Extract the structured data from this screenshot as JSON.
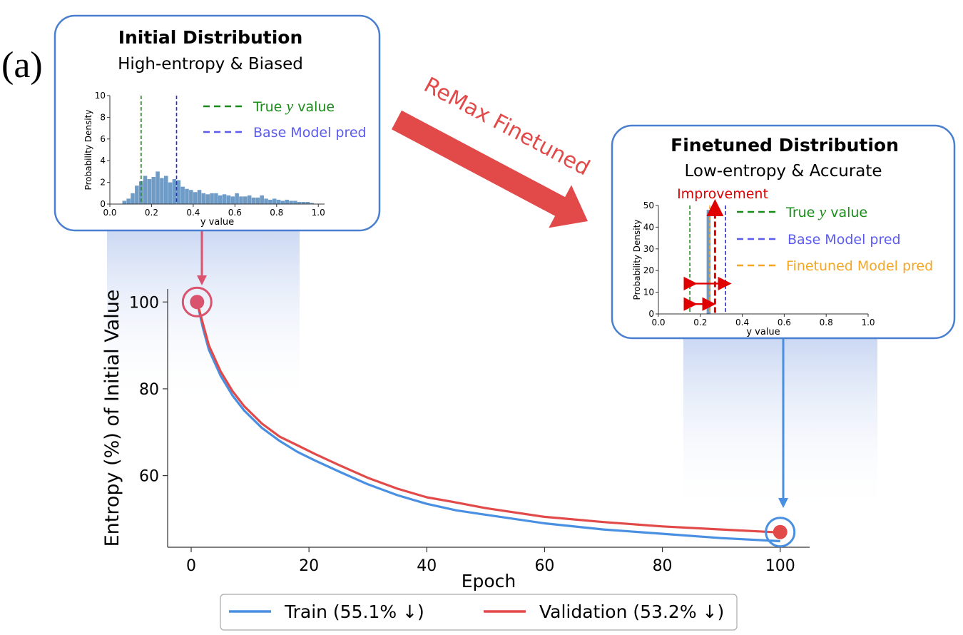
{
  "panel_label": "(a)",
  "arrow_label": "ReMax Finetuned",
  "colors": {
    "train": "#4a90e2",
    "validation": "#e24a4a",
    "hist": "#6f9bc7",
    "true_line": "#1a8c1a",
    "base_line": "#2b2bd6",
    "finetuned_line": "#f5a623",
    "box_border": "#4a7fd0",
    "arrow": "#e24a4a",
    "improvement": "#e00000"
  },
  "chart_data": [
    {
      "type": "line",
      "title": "",
      "xlabel": "Epoch",
      "ylabel": "Entropy (%) of Initial Value",
      "xlim": [
        -4,
        105
      ],
      "ylim": [
        43.5,
        103
      ],
      "xticks": [
        0,
        20,
        40,
        60,
        80,
        100
      ],
      "yticks": [
        60,
        80,
        100
      ],
      "x": [
        1,
        2,
        3,
        5,
        7,
        9,
        12,
        15,
        18,
        21,
        25,
        30,
        35,
        40,
        45,
        50,
        60,
        70,
        80,
        90,
        100
      ],
      "series": [
        {
          "name": "Train",
          "legend": "Train (55.1% ↓)",
          "values": [
            100,
            94,
            89,
            83,
            78.5,
            75,
            71,
            68,
            65.5,
            63.5,
            61,
            58,
            55.5,
            53.5,
            52,
            51,
            49,
            47.6,
            46.6,
            45.6,
            44.9
          ]
        },
        {
          "name": "Validation",
          "legend": "Validation (53.2% ↓)",
          "values": [
            100,
            95,
            90,
            84,
            79.5,
            76,
            72,
            69,
            67,
            65,
            62.5,
            59.5,
            57,
            55,
            53.8,
            52.5,
            50.5,
            49.3,
            48.3,
            47.6,
            46.9
          ]
        }
      ],
      "markers": [
        {
          "x": 1,
          "y": 100,
          "label": "start"
        },
        {
          "x": 100,
          "y": 47,
          "label": "end"
        }
      ]
    },
    {
      "type": "bar",
      "title": "Initial Distribution",
      "subtitle": "High-entropy & Biased",
      "xlabel": "y value",
      "ylabel": "Probability Density",
      "xlim": [
        0,
        1.03
      ],
      "ylim": [
        0,
        10
      ],
      "xticks": [
        0.0,
        0.2,
        0.4,
        0.6,
        0.8,
        1.0
      ],
      "yticks": [
        0,
        2,
        4,
        6,
        8,
        10
      ],
      "bin_width": 0.02,
      "bin_starts": [
        0.06,
        0.08,
        0.1,
        0.12,
        0.14,
        0.16,
        0.18,
        0.2,
        0.22,
        0.24,
        0.26,
        0.28,
        0.3,
        0.32,
        0.34,
        0.36,
        0.38,
        0.4,
        0.42,
        0.44,
        0.46,
        0.48,
        0.5,
        0.52,
        0.54,
        0.56,
        0.58,
        0.6,
        0.62,
        0.64,
        0.66,
        0.68,
        0.7,
        0.72,
        0.74,
        0.76,
        0.78,
        0.8,
        0.82,
        0.84,
        0.86,
        0.88,
        0.9,
        0.92,
        0.94,
        0.96
      ],
      "values": [
        0.3,
        0.5,
        1.0,
        1.7,
        2.1,
        2.6,
        2.3,
        2.5,
        3.0,
        2.4,
        2.6,
        2.0,
        2.3,
        2.2,
        1.6,
        1.4,
        1.3,
        1.1,
        1.3,
        1.0,
        0.9,
        1.0,
        1.0,
        0.8,
        0.9,
        0.8,
        0.7,
        1.0,
        0.7,
        0.7,
        0.8,
        0.6,
        0.6,
        0.8,
        0.5,
        0.4,
        0.5,
        0.4,
        0.3,
        0.4,
        0.3,
        0.3,
        0.2,
        0.2,
        0.2,
        0.1
      ],
      "vlines": [
        {
          "name": "True y value",
          "legend_prefix": "True ",
          "legend_var": "y",
          "legend_suffix": " value",
          "x": 0.15
        },
        {
          "name": "Base Model pred",
          "legend": "Base Model pred",
          "x": 0.32
        }
      ]
    },
    {
      "type": "bar",
      "title": "Finetuned Distribution",
      "subtitle": "Low-entropy & Accurate",
      "annotation": "Improvement",
      "xlabel": "y value",
      "ylabel": "Probability Density",
      "xlim": [
        0,
        1.0
      ],
      "ylim": [
        0,
        50
      ],
      "xticks": [
        0.0,
        0.2,
        0.4,
        0.6,
        0.8,
        1.0
      ],
      "yticks": [
        0,
        10,
        20,
        30,
        40,
        50
      ],
      "bin_width": 0.02,
      "bin_starts": [
        0.23
      ],
      "values": [
        48
      ],
      "vlines": [
        {
          "name": "True y value",
          "legend_prefix": "True ",
          "legend_var": "y",
          "legend_suffix": " value",
          "x": 0.15
        },
        {
          "name": "Base Model pred",
          "legend": "Base Model pred",
          "x": 0.32
        },
        {
          "name": "Finetuned Model pred",
          "legend": "Finetuned Model pred",
          "x": 0.245
        }
      ]
    }
  ]
}
